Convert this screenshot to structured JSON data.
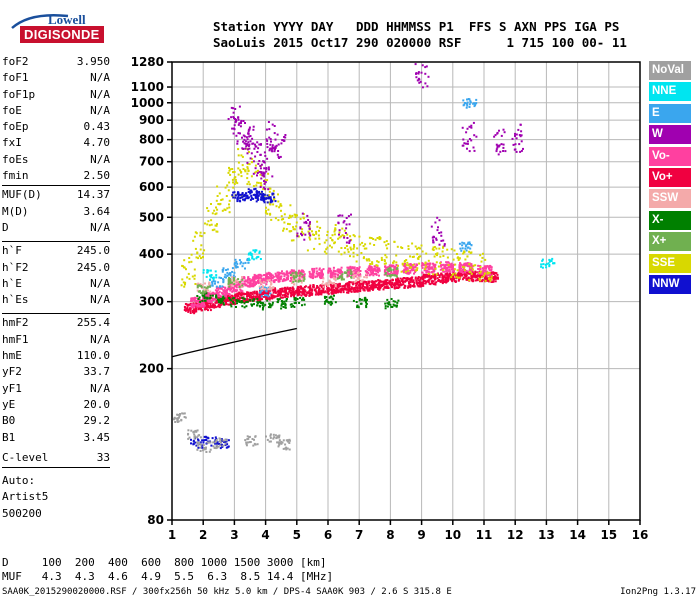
{
  "logo": {
    "line1": "Lowell",
    "line2": "DIGISONDE"
  },
  "header": {
    "line1": "Station YYYY DAY   DDD HHMMSS P1  FFS S AXN PPS IGA PS",
    "line2": "SaoLuis 2015 Oct17 290 020000 RSF      1 715 100 00- 11"
  },
  "params": {
    "group1": [
      {
        "label": "foF2",
        "value": "3.950"
      },
      {
        "label": "foF1",
        "value": "N/A"
      },
      {
        "label": "foF1p",
        "value": "N/A"
      },
      {
        "label": "foE",
        "value": "N/A"
      },
      {
        "label": "foEp",
        "value": "0.43"
      },
      {
        "label": "fxI",
        "value": "4.70"
      },
      {
        "label": "foEs",
        "value": "N/A"
      },
      {
        "label": "fmin",
        "value": "2.50"
      }
    ],
    "group2": [
      {
        "label": "MUF(D)",
        "value": "14.37"
      },
      {
        "label": "M(D)",
        "value": "3.64"
      },
      {
        "label": "D",
        "value": "N/A"
      }
    ],
    "group3": [
      {
        "label": "h`F",
        "value": "245.0"
      },
      {
        "label": "h`F2",
        "value": "245.0"
      },
      {
        "label": "h`E",
        "value": "N/A"
      },
      {
        "label": "h`Es",
        "value": "N/A"
      }
    ],
    "group4": [
      {
        "label": "hmF2",
        "value": "255.4"
      },
      {
        "label": "hmF1",
        "value": "N/A"
      },
      {
        "label": "hmE",
        "value": "110.0"
      },
      {
        "label": "yF2",
        "value": "33.7"
      },
      {
        "label": "yF1",
        "value": "N/A"
      },
      {
        "label": "yE",
        "value": "20.0"
      },
      {
        "label": "B0",
        "value": "29.2"
      },
      {
        "label": "B1",
        "value": "3.45"
      }
    ],
    "clevel": {
      "label": "C-level",
      "value": "33"
    },
    "auto": [
      "Auto:",
      "Artist5",
      "500200"
    ]
  },
  "legend": [
    {
      "label": "NoVal",
      "color": "#a0a0a0"
    },
    {
      "label": "NNE",
      "color": "#00e5f0"
    },
    {
      "label": "E",
      "color": "#3aa6ee"
    },
    {
      "label": "W",
      "color": "#a000b0"
    },
    {
      "label": "Vo-",
      "color": "#ff40a0"
    },
    {
      "label": "Vo+",
      "color": "#f00040"
    },
    {
      "label": "SSW",
      "color": "#f4aaaa"
    },
    {
      "label": "X-",
      "color": "#008000"
    },
    {
      "label": "X+",
      "color": "#70b050"
    },
    {
      "label": "SSE",
      "color": "#d8d800"
    },
    {
      "label": "NNW",
      "color": "#1010d0"
    }
  ],
  "bottom": {
    "d_line": "D     100  200  400  600  800 1000 1500 3000 [km]",
    "muf_line": "MUF   4.3  4.3  4.6  4.9  5.5  6.3  8.5 14.4 [MHz]"
  },
  "footer": {
    "file": "SAA0K_2015290020000.RSF / 300fx256h 50 kHz 5.0 km / DPS-4 SAA0K 903 / 2.6 S 315.8 E",
    "version": "Ion2Png 1.3.17"
  },
  "chart_data": {
    "type": "scatter",
    "title": "",
    "xlabel": "",
    "ylabel": "",
    "xlim": [
      1,
      16
    ],
    "ylim": [
      80,
      1280
    ],
    "y_scale": "log",
    "x_ticks": [
      1,
      2,
      3,
      4,
      5,
      6,
      7,
      8,
      9,
      10,
      11,
      12,
      13,
      14,
      15,
      16
    ],
    "y_ticks": [
      80,
      200,
      300,
      400,
      500,
      600,
      700,
      800,
      900,
      1000,
      1100,
      1280
    ],
    "grid": true,
    "legend_position": "right",
    "trace_line": {
      "name": "",
      "x": [
        1.0,
        1.5,
        2.0,
        2.5,
        3.0,
        3.5,
        4.0,
        4.5,
        5.0
      ],
      "y": [
        215,
        220,
        225,
        230,
        235,
        240,
        245,
        250,
        255
      ]
    },
    "echo_clusters": [
      {
        "color": "#f00040",
        "x": [
          1.6,
          2.0,
          2.4,
          2.8,
          3.2,
          3.6,
          4.0,
          4.4,
          4.8,
          5.2,
          5.6,
          6.0,
          6.4,
          6.8,
          7.2,
          7.6,
          8.0,
          8.4,
          8.8,
          9.2,
          9.6,
          10.0,
          10.4,
          10.8,
          11.2
        ],
        "y": [
          290,
          295,
          300,
          305,
          310,
          312,
          315,
          318,
          320,
          322,
          324,
          326,
          328,
          330,
          332,
          334,
          336,
          338,
          340,
          345,
          348,
          350,
          352,
          352,
          350
        ]
      },
      {
        "color": "#ff40a0",
        "x": [
          1.8,
          2.2,
          2.6,
          3.0,
          3.4,
          3.8,
          4.2,
          4.6,
          5.0,
          5.6,
          6.2,
          6.8,
          7.4,
          8.0,
          8.6,
          9.2,
          9.8,
          10.4,
          11.0
        ],
        "y": [
          300,
          310,
          320,
          330,
          340,
          345,
          350,
          352,
          355,
          358,
          360,
          362,
          364,
          366,
          368,
          370,
          372,
          370,
          365
        ]
      },
      {
        "color": "#d8d800",
        "x": [
          1.5,
          1.8,
          2.2,
          2.6,
          3.0,
          3.3,
          3.6,
          3.9,
          4.2,
          4.6,
          5.0,
          5.5,
          6.0,
          6.5,
          7.0,
          7.5,
          8.0,
          8.5,
          9.0,
          9.5,
          10.0,
          10.5,
          11.0
        ],
        "y": [
          360,
          420,
          500,
          560,
          620,
          700,
          660,
          600,
          540,
          500,
          470,
          450,
          440,
          430,
          420,
          410,
          400,
          395,
          390,
          385,
          380,
          375,
          370
        ]
      },
      {
        "color": "#a000b0",
        "x": [
          3.0,
          3.2,
          3.4,
          3.6,
          3.8,
          4.0,
          4.2,
          4.4,
          5.2,
          6.5,
          9.0,
          9.5,
          10.5,
          11.5,
          12.0
        ],
        "y": [
          900,
          850,
          800,
          750,
          700,
          650,
          820,
          780,
          480,
          470,
          1200,
          460,
          820,
          800,
          810
        ]
      },
      {
        "color": "#1010d0",
        "x": [
          3.1,
          3.3,
          3.5,
          3.7,
          3.9,
          4.1,
          1.8,
          2.2,
          2.6
        ],
        "y": [
          570,
          575,
          580,
          575,
          570,
          565,
          128,
          130,
          128
        ]
      },
      {
        "color": "#008000",
        "x": [
          2.0,
          2.5,
          3.0,
          3.5,
          4.0,
          4.5,
          5.0,
          6.0,
          7.0,
          8.0
        ],
        "y": [
          310,
          305,
          300,
          300,
          295,
          298,
          300,
          305,
          300,
          298
        ]
      },
      {
        "color": "#3aa6ee",
        "x": [
          2.4,
          2.8,
          3.2,
          4.0,
          10.4,
          10.5
        ],
        "y": [
          340,
          360,
          380,
          320,
          420,
          1000
        ]
      },
      {
        "color": "#00e5f0",
        "x": [
          2.2,
          3.6,
          13.0
        ],
        "y": [
          355,
          400,
          380
        ]
      },
      {
        "color": "#f4aaaa",
        "x": [
          2.0,
          3.0,
          4.0,
          5.0,
          6.0,
          7.0
        ],
        "y": [
          330,
          340,
          335,
          345,
          340,
          350
        ]
      },
      {
        "color": "#70b050",
        "x": [
          2.0,
          3.0,
          5.0,
          6.5,
          8.0
        ],
        "y": [
          325,
          340,
          350,
          355,
          360
        ]
      },
      {
        "color": "#a0a0a0",
        "x": [
          1.2,
          1.7,
          2.0,
          2.5,
          3.5,
          4.2,
          4.6
        ],
        "y": [
          150,
          135,
          125,
          128,
          130,
          132,
          127
        ]
      }
    ]
  }
}
